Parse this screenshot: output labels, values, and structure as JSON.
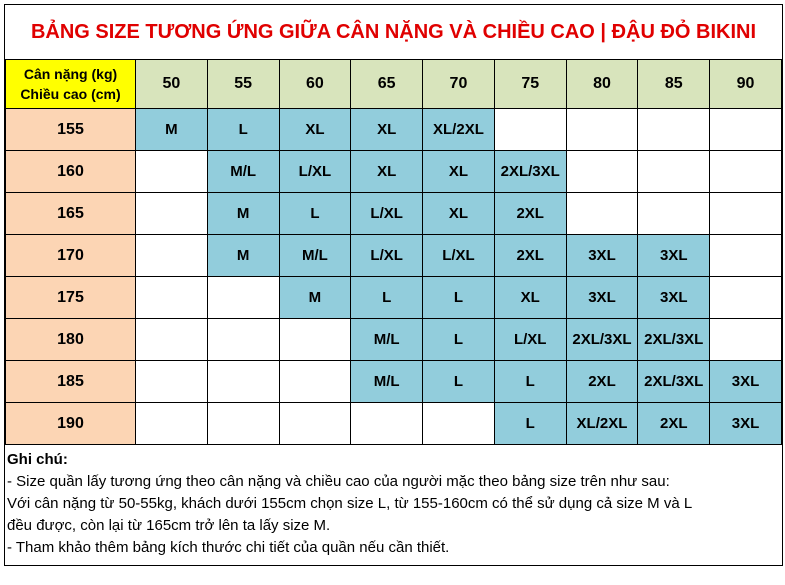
{
  "title": "BẢNG SIZE TƯƠNG ỨNG GIỮA CÂN NẶNG VÀ CHIỀU CAO | ĐẬU ĐỎ BIKINI",
  "table": {
    "corner": [
      "Cân nặng (kg)",
      "Chiều cao (cm)"
    ],
    "weights": [
      50,
      55,
      60,
      65,
      70,
      75,
      80,
      85,
      90
    ],
    "rows": [
      {
        "height": 155,
        "sizes": [
          "M",
          "L",
          "XL",
          "XL",
          "XL/2XL",
          null,
          null,
          null,
          null
        ]
      },
      {
        "height": 160,
        "sizes": [
          null,
          "M/L",
          "L/XL",
          "XL",
          "XL",
          "2XL/3XL",
          null,
          null,
          null
        ]
      },
      {
        "height": 165,
        "sizes": [
          null,
          "M",
          "L",
          "L/XL",
          "XL",
          "2XL",
          null,
          null,
          null
        ]
      },
      {
        "height": 170,
        "sizes": [
          null,
          "M",
          "M/L",
          "L/XL",
          "L/XL",
          "2XL",
          "3XL",
          "3XL",
          null
        ]
      },
      {
        "height": 175,
        "sizes": [
          null,
          null,
          "M",
          "L",
          "L",
          "XL",
          "3XL",
          "3XL",
          null
        ]
      },
      {
        "height": 180,
        "sizes": [
          null,
          null,
          null,
          "M/L",
          "L",
          "L/XL",
          "2XL/3XL",
          "2XL/3XL",
          null
        ]
      },
      {
        "height": 185,
        "sizes": [
          null,
          null,
          null,
          "M/L",
          "L",
          "L",
          "2XL",
          "2XL/3XL",
          "3XL"
        ]
      },
      {
        "height": 190,
        "sizes": [
          null,
          null,
          null,
          null,
          null,
          "L",
          "XL/2XL",
          "2XL",
          "3XL"
        ]
      }
    ]
  },
  "notes": {
    "heading": "Ghi chú:",
    "lines": [
      "- Size quần lấy tương ứng theo cân nặng và chiều cao của người mặc theo bảng size trên như sau:",
      "Với cân nặng từ 50-55kg, khách dưới 155cm chọn size L, từ 155-160cm có thể sử dụng cả size M và L",
      "đều được, còn lại từ 165cm trở lên ta lấy size M.",
      "- Tham khảo thêm bảng kích thước chi tiết của quần nếu cần thiết."
    ]
  }
}
